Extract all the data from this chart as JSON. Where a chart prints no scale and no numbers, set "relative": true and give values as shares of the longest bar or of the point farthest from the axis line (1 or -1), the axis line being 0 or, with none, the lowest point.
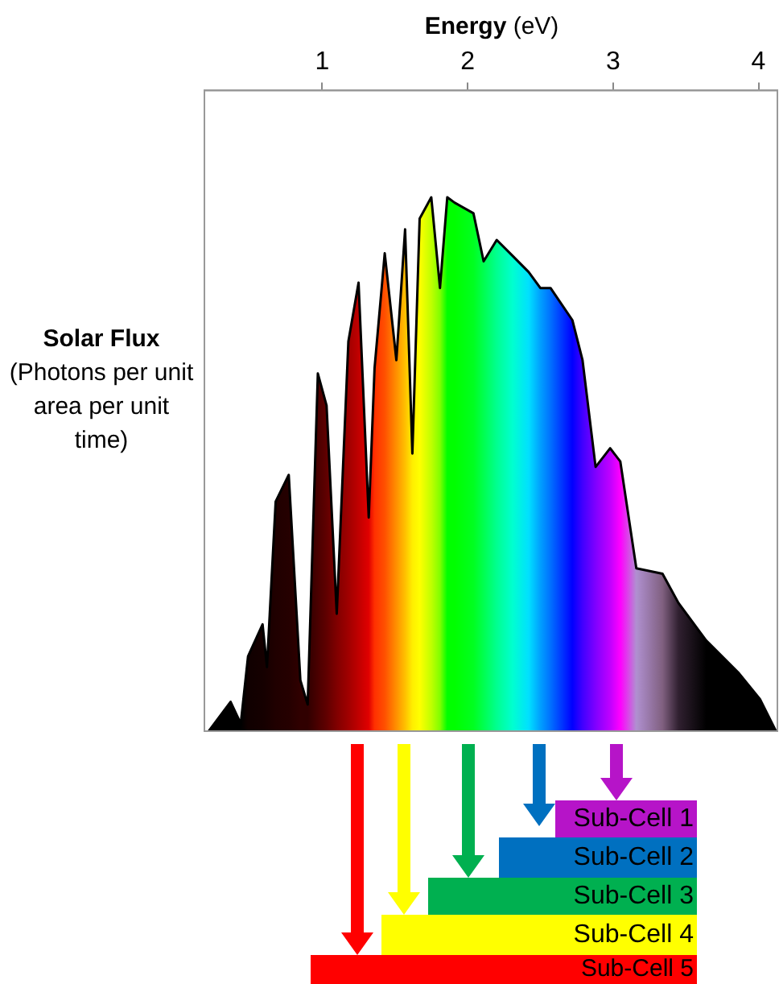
{
  "chart_data": {
    "type": "area",
    "xlabel": "Energy (eV)",
    "ylabel": "Solar Flux (Photons per unit area per unit time)",
    "relative": true,
    "xlim": [
      0.19,
      4.13
    ],
    "xticks": [
      1,
      2,
      3,
      4
    ],
    "grid": false,
    "legend": false,
    "marker": "none",
    "series": [
      {
        "color": "#000000",
        "x": [
          0.22,
          0.37,
          0.44,
          0.49,
          0.59,
          0.62,
          0.68,
          0.77,
          0.85,
          0.9,
          0.97,
          1.03,
          1.1,
          1.18,
          1.25,
          1.32,
          1.36,
          1.43,
          1.51,
          1.57,
          1.62,
          1.67,
          1.75,
          1.81,
          1.86,
          1.91,
          2.04,
          2.11,
          2.2,
          2.31,
          2.42,
          2.5,
          2.57,
          2.72,
          2.79,
          2.88,
          2.98,
          3.05,
          3.16,
          3.34,
          3.45,
          3.64,
          3.86,
          4.01,
          4.12
        ],
        "values": [
          0,
          0.055,
          0.014,
          0.14,
          0.2,
          0.12,
          0.43,
          0.48,
          0.095,
          0.05,
          0.67,
          0.61,
          0.22,
          0.73,
          0.84,
          0.4,
          0.68,
          0.895,
          0.695,
          0.94,
          0.52,
          0.96,
          1,
          0.83,
          1,
          0.99,
          0.97,
          0.88,
          0.92,
          0.89,
          0.86,
          0.83,
          0.83,
          0.77,
          0.695,
          0.495,
          0.53,
          0.505,
          0.305,
          0.295,
          0.24,
          0.17,
          0.11,
          0.06,
          0
        ],
        "colors": [
          "#000000",
          "#000000",
          "#000000",
          "#100000",
          "#150000",
          "#180000",
          "#200000",
          "#250000",
          "#300000",
          "#300000",
          "#4a0000",
          "#600000",
          "#800000",
          "#a00000",
          "#c00000",
          "#e00000",
          "#ff3000",
          "#ff5000",
          "#ff9000",
          "#ffc000",
          "#ffee00",
          "#ffff00",
          "#c0ff00",
          "#80ff00",
          "#00ff00",
          "#00ff00",
          "#00ff20",
          "#00ff50",
          "#00ff90",
          "#00ffd0",
          "#00e0ff",
          "#00a0ff",
          "#0070ff",
          "#0000ff",
          "#4000ff",
          "#8000ff",
          "#c000ff",
          "#ff00ff",
          "#b090d0",
          "#806080",
          "#302030",
          "#000000",
          "#000000",
          "#000000",
          "#000000"
        ]
      }
    ],
    "annotations": [
      "Sub-Cell 1",
      "Sub-Cell 2",
      "Sub-Cell 3",
      "Sub-Cell 4",
      "Sub-Cell 5"
    ]
  }
}
